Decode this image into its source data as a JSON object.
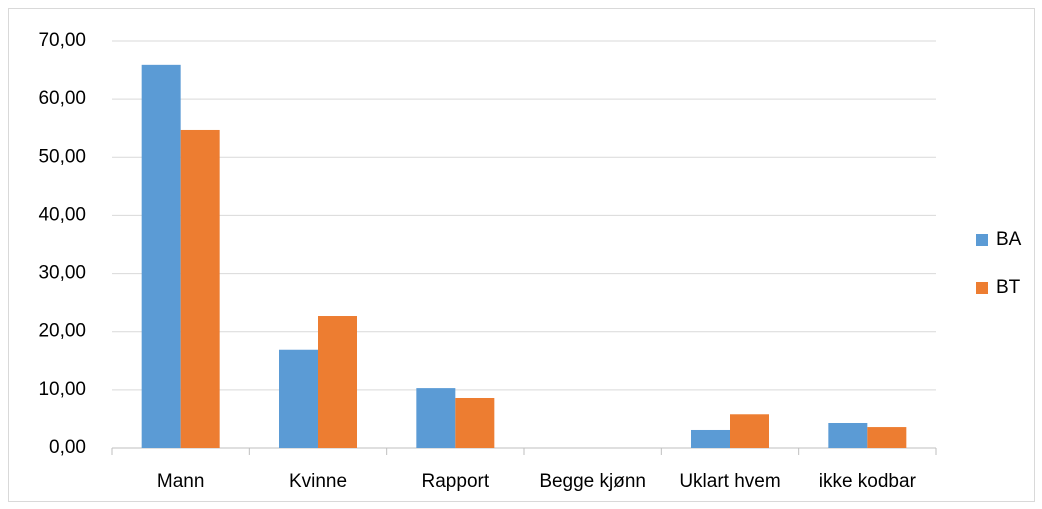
{
  "chart_data": {
    "type": "bar",
    "categories": [
      "Mann",
      "Kvinne",
      "Rapport",
      "Begge kjønn",
      "Uklart hvem",
      "ikke kodbar"
    ],
    "series": [
      {
        "name": "BA",
        "color": "#5b9bd5",
        "values": [
          65.9,
          16.9,
          10.3,
          0,
          3.1,
          4.3
        ]
      },
      {
        "name": "BT",
        "color": "#ed7d31",
        "values": [
          54.7,
          22.7,
          8.6,
          0,
          5.8,
          3.6
        ]
      }
    ],
    "ylim": [
      0,
      70
    ],
    "yticks": [
      {
        "value": 0,
        "label": "0,00"
      },
      {
        "value": 10,
        "label": "10,00"
      },
      {
        "value": 20,
        "label": "20,00"
      },
      {
        "value": 30,
        "label": "30,00"
      },
      {
        "value": 40,
        "label": "40,00"
      },
      {
        "value": 50,
        "label": "50,00"
      },
      {
        "value": 60,
        "label": "60,00"
      },
      {
        "value": 70,
        "label": "70,00"
      }
    ],
    "grid": true,
    "legend": "right"
  }
}
